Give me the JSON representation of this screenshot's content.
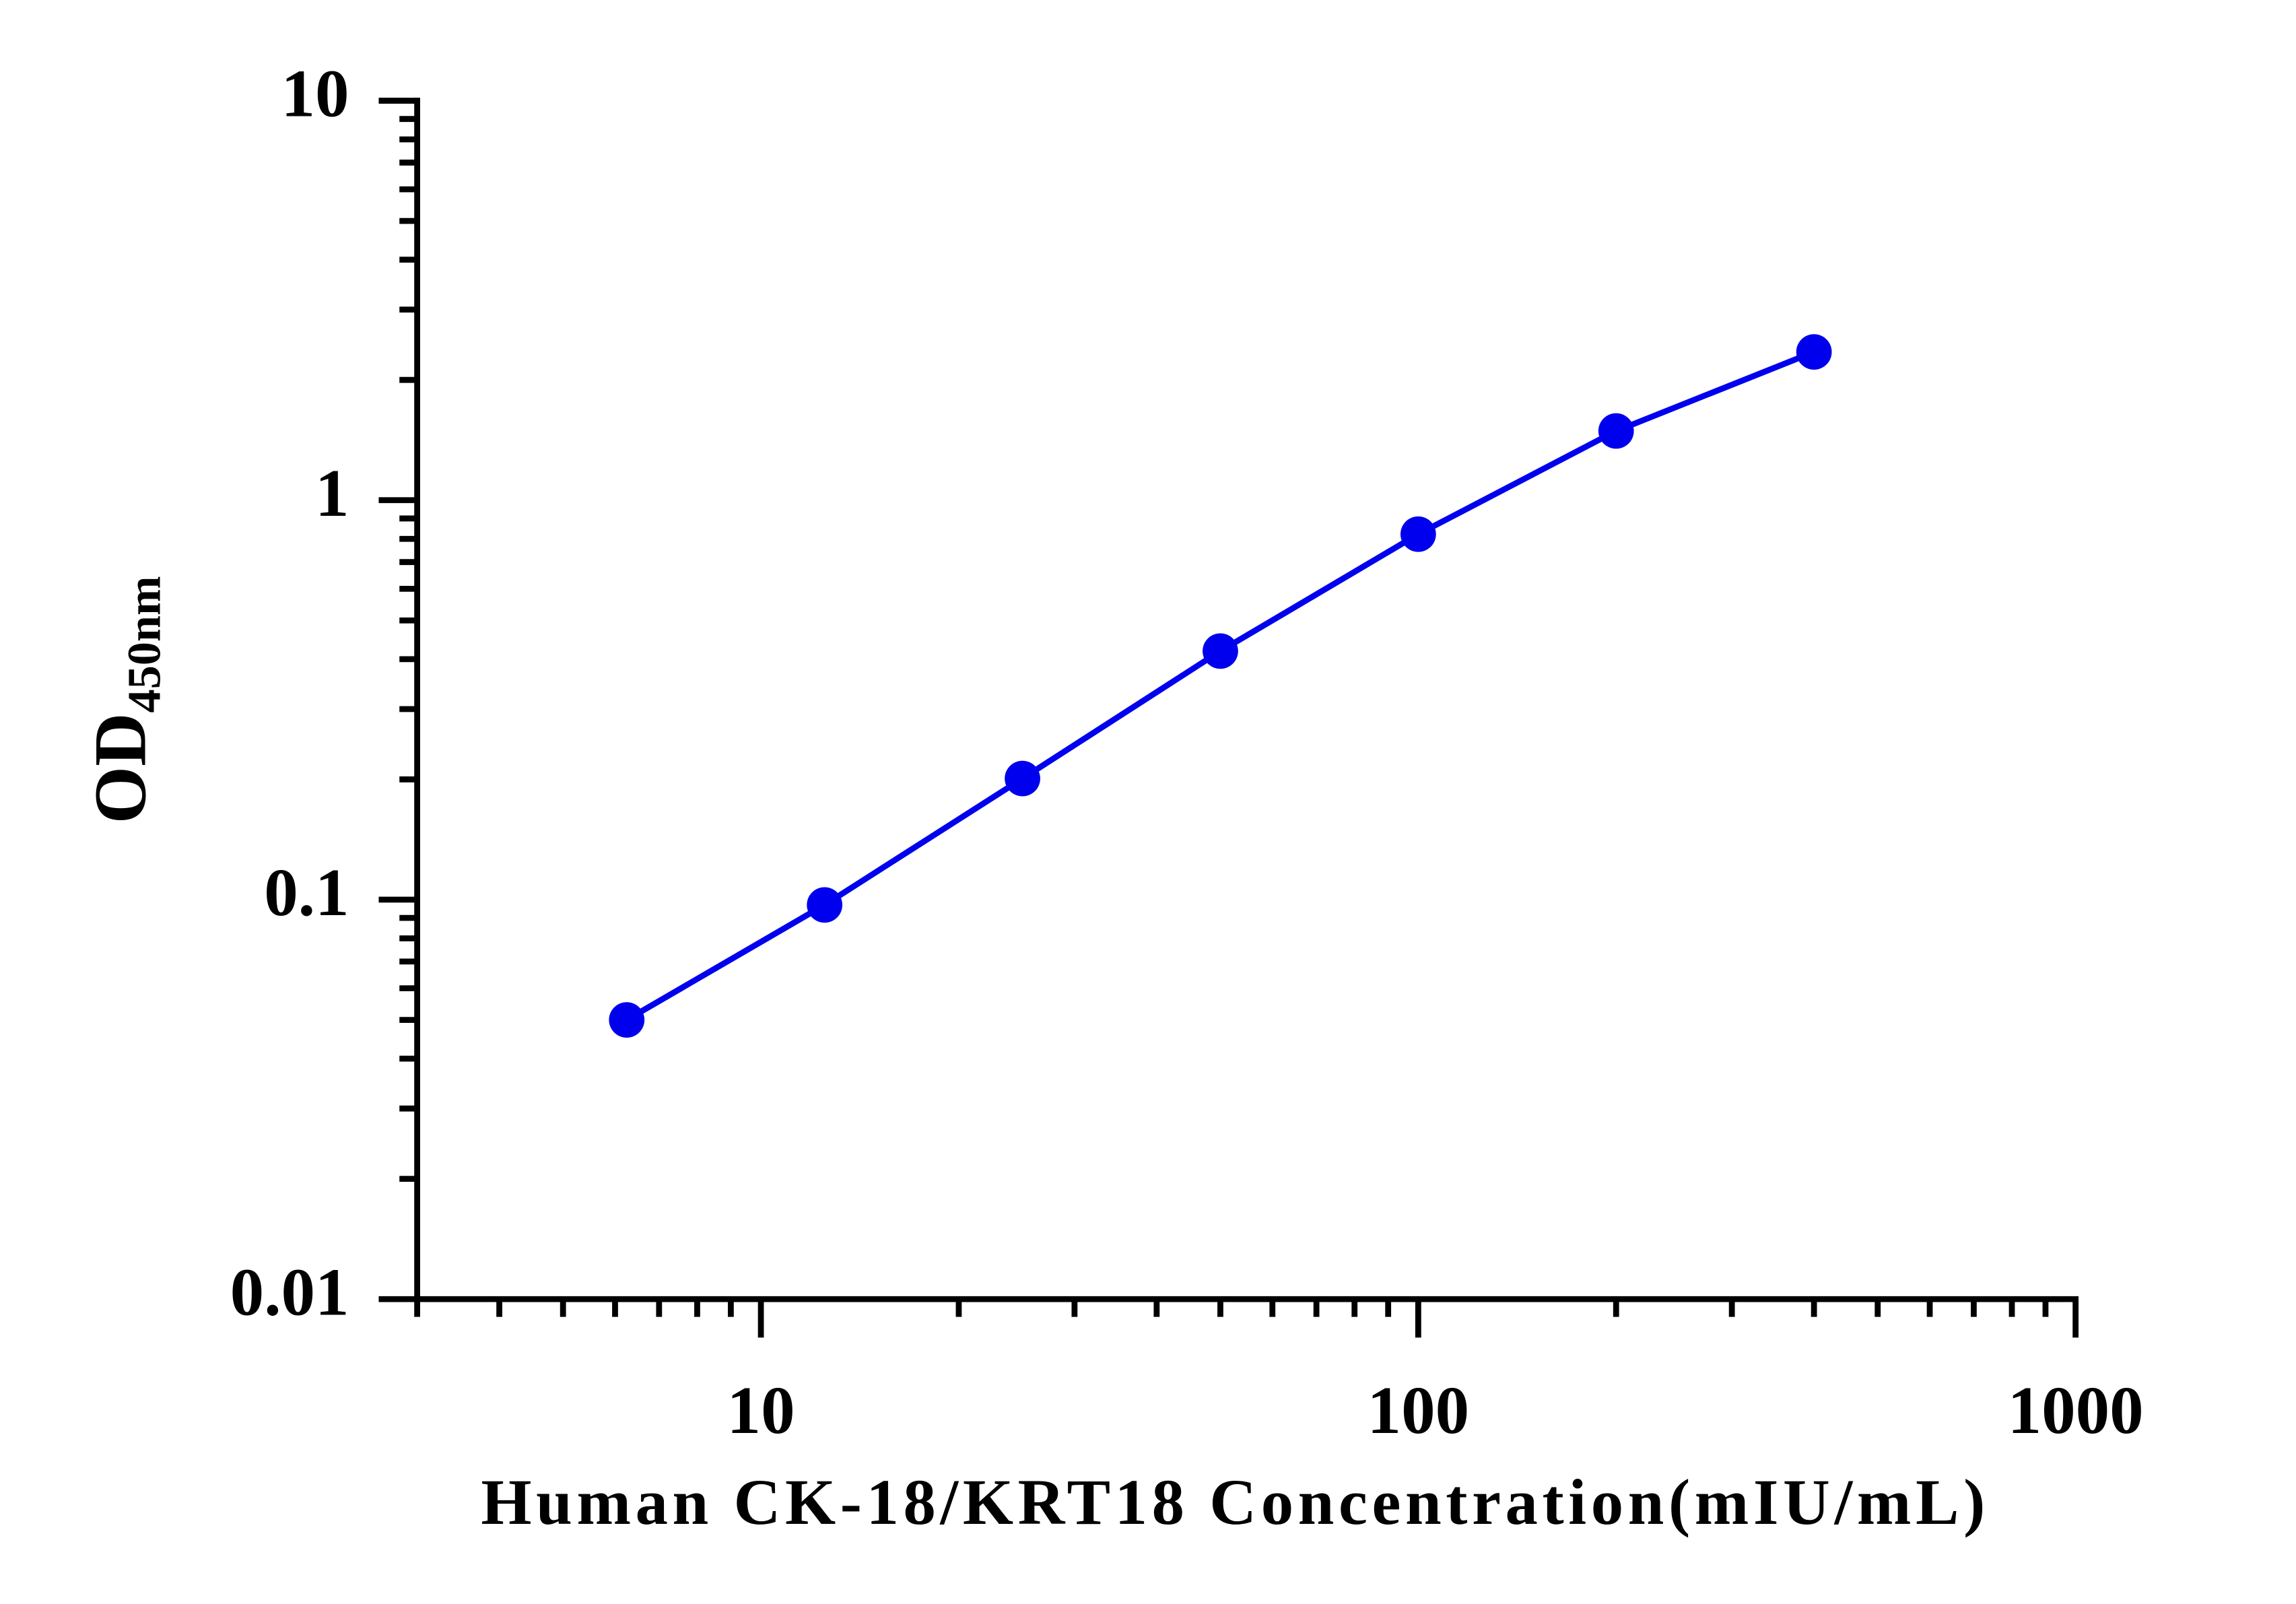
{
  "chart_data": {
    "type": "line",
    "x_label": "Human CK-18/KRT18 Concentration(mIU/mL)",
    "y_label": "OD",
    "y_label_subscript": "450nm",
    "x": [
      6.25,
      12.5,
      25,
      50,
      100,
      200,
      400
    ],
    "series": [
      {
        "color": "#0000ee",
        "values": [
          0.05,
          0.097,
          0.201,
          0.419,
          0.822,
          1.49,
          2.35
        ]
      }
    ],
    "x_log": true,
    "y_log": true,
    "xlim": [
      3,
      1000
    ],
    "xticks": [
      10,
      100,
      1000
    ],
    "ylim": [
      0.01,
      10
    ],
    "yticks": [
      0.01,
      0.1,
      1,
      10
    ],
    "grid": false,
    "markers": true
  }
}
